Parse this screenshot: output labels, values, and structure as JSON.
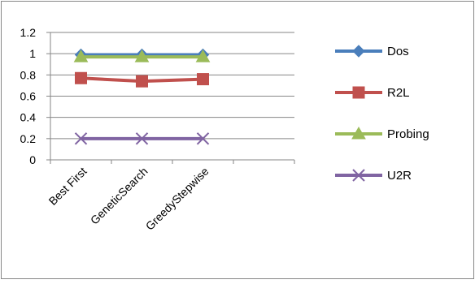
{
  "chart_data": {
    "type": "line",
    "categories": [
      "Best First",
      "GeneticSearch",
      "GreedyStepwise"
    ],
    "series": [
      {
        "name": "Dos",
        "values": [
          0.99,
          0.99,
          0.99
        ],
        "color": "#4a7ebb",
        "marker": "diamond"
      },
      {
        "name": "R2L",
        "values": [
          0.77,
          0.74,
          0.76
        ],
        "color": "#c0504d",
        "marker": "square"
      },
      {
        "name": "Probing",
        "values": [
          0.97,
          0.97,
          0.97
        ],
        "color": "#9bbb59",
        "marker": "triangle"
      },
      {
        "name": "U2R",
        "values": [
          0.2,
          0.2,
          0.2
        ],
        "color": "#8064a2",
        "marker": "x"
      }
    ],
    "title": "",
    "xlabel": "",
    "ylabel": "",
    "ylim": [
      0,
      1.2
    ],
    "yticks": [
      "0",
      "0.2",
      "0.4",
      "0.6",
      "0.8",
      "1",
      "1.2"
    ],
    "category_slots": 4,
    "grid": "horizontal",
    "legend": "right"
  }
}
